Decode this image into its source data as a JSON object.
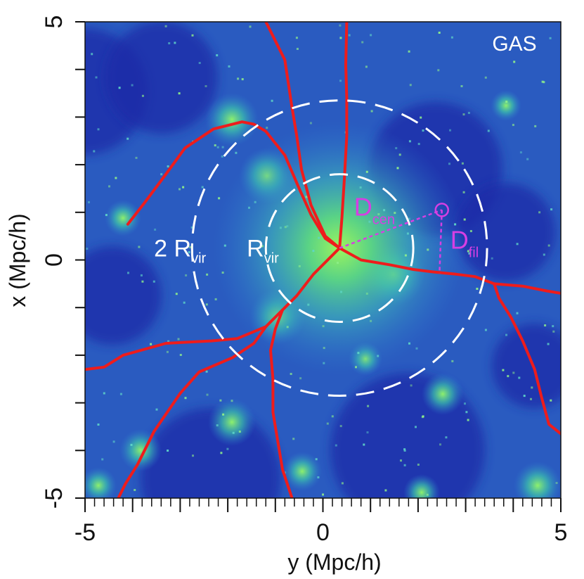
{
  "chart_data": {
    "type": "heatmap",
    "panel_label": "GAS",
    "xlabel": "y (Mpc/h)",
    "ylabel": "x  (Mpc/h)",
    "xlim": [
      -5,
      5
    ],
    "ylim": [
      -5,
      5
    ],
    "x_ticks": [
      {
        "value": -5,
        "label": "-5"
      },
      {
        "value": 0,
        "label": "0"
      },
      {
        "value": 5,
        "label": "5"
      }
    ],
    "y_ticks": [
      {
        "value": 5,
        "label": "5"
      },
      {
        "value": 0,
        "label": "0"
      },
      {
        "value": -5,
        "label": "-5"
      }
    ],
    "colors": {
      "background_low": "#1a2aa8",
      "background_mid": "#2f8fd6",
      "background_high": "#7ff06a",
      "filament": "#ee1c1c",
      "circle": "#ffffff",
      "annotation": "#d63fe3"
    },
    "halo_center": [
      0.35,
      0.25
    ],
    "circles": [
      {
        "label_main": "R",
        "label_sub": "vir",
        "radius": 1.55,
        "label_pos": [
          -1.6,
          0.25
        ]
      },
      {
        "label_main": "2 R",
        "label_sub": "vir",
        "radius": 3.1,
        "label_pos": [
          -3.55,
          0.25
        ]
      }
    ],
    "filaments": [
      [
        [
          0.35,
          0.25
        ],
        [
          0.05,
          0.45
        ],
        [
          -0.25,
          0.95
        ],
        [
          -0.5,
          1.5
        ],
        [
          -0.8,
          2.2
        ],
        [
          -1.2,
          2.7
        ],
        [
          -1.45,
          2.85
        ],
        [
          -1.7,
          2.9
        ],
        [
          -2.3,
          2.75
        ],
        [
          -2.9,
          2.35
        ],
        [
          -3.3,
          1.8
        ],
        [
          -3.75,
          1.2
        ],
        [
          -4.1,
          0.75
        ]
      ],
      [
        [
          0.35,
          0.25
        ],
        [
          0.05,
          0.5
        ],
        [
          -0.25,
          1.15
        ],
        [
          -0.45,
          1.9
        ],
        [
          -0.55,
          2.6
        ],
        [
          -0.65,
          3.2
        ],
        [
          -0.8,
          4.2
        ],
        [
          -1.2,
          5.0
        ]
      ],
      [
        [
          0.35,
          0.25
        ],
        [
          0.4,
          0.9
        ],
        [
          0.45,
          1.7
        ],
        [
          0.5,
          2.6
        ],
        [
          0.5,
          3.4
        ],
        [
          0.48,
          4.1
        ],
        [
          0.5,
          5.0
        ]
      ],
      [
        [
          0.35,
          0.25
        ],
        [
          0.8,
          0.0
        ],
        [
          1.4,
          -0.1
        ],
        [
          1.9,
          -0.2
        ],
        [
          2.3,
          -0.25
        ],
        [
          2.8,
          -0.3
        ],
        [
          3.2,
          -0.35
        ],
        [
          3.6,
          -0.5
        ],
        [
          4.2,
          -0.55
        ],
        [
          4.7,
          -0.65
        ],
        [
          5.0,
          -0.7
        ]
      ],
      [
        [
          3.6,
          -0.5
        ],
        [
          3.7,
          -0.8
        ],
        [
          3.95,
          -1.2
        ],
        [
          4.2,
          -1.7
        ],
        [
          4.45,
          -2.3
        ],
        [
          4.6,
          -2.9
        ],
        [
          4.75,
          -3.45
        ],
        [
          5.0,
          -3.65
        ]
      ],
      [
        [
          0.35,
          0.25
        ],
        [
          -0.2,
          -0.3
        ],
        [
          -0.55,
          -0.75
        ],
        [
          -0.85,
          -1.05
        ],
        [
          -1.2,
          -1.4
        ],
        [
          -1.8,
          -1.65
        ],
        [
          -2.35,
          -1.7
        ],
        [
          -3.3,
          -1.75
        ],
        [
          -4.2,
          -2.0
        ],
        [
          -4.6,
          -2.25
        ],
        [
          -5.0,
          -2.3
        ]
      ],
      [
        [
          -1.2,
          -1.4
        ],
        [
          -1.45,
          -1.75
        ],
        [
          -1.9,
          -2.05
        ],
        [
          -2.6,
          -2.35
        ],
        [
          -3.0,
          -2.8
        ],
        [
          -3.55,
          -3.6
        ],
        [
          -3.9,
          -4.3
        ],
        [
          -4.15,
          -4.7
        ],
        [
          -4.3,
          -5.0
        ]
      ],
      [
        [
          -0.85,
          -1.05
        ],
        [
          -1.0,
          -1.45
        ],
        [
          -1.1,
          -1.9
        ],
        [
          -1.05,
          -2.5
        ],
        [
          -1.05,
          -3.2
        ],
        [
          -0.95,
          -3.8
        ],
        [
          -0.85,
          -4.4
        ],
        [
          -0.65,
          -5.0
        ]
      ]
    ],
    "galaxy": {
      "position": [
        2.5,
        1.05
      ],
      "dcen_label_main": "D",
      "dcen_label_sub": "cen",
      "dfil_label_main": "D",
      "dfil_label_sub": "fil",
      "dfil_foot": [
        2.45,
        -0.28
      ]
    }
  }
}
